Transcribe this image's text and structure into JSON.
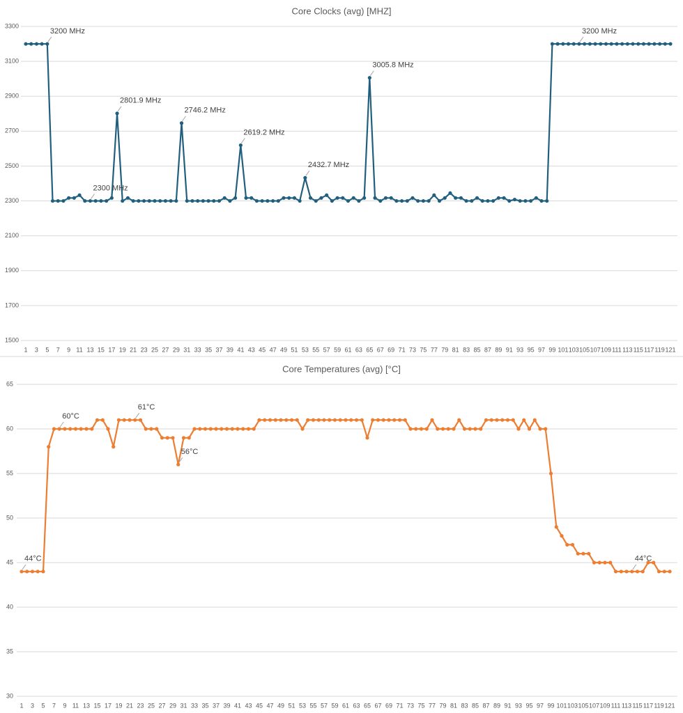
{
  "chart_data": [
    {
      "type": "line",
      "title": "Core Clocks (avg) [MHZ]",
      "color": "#215f7e",
      "ylim": [
        1500,
        3300
      ],
      "yticks": [
        1500,
        1700,
        1900,
        2100,
        2300,
        2500,
        2700,
        2900,
        3100,
        3300
      ],
      "grid": true,
      "categories": [
        1,
        null,
        3,
        null,
        5,
        null,
        7,
        null,
        9,
        null,
        11,
        null,
        13,
        null,
        15,
        null,
        17,
        null,
        19,
        null,
        21,
        null,
        23,
        null,
        25,
        null,
        27,
        null,
        29,
        null,
        31,
        null,
        33,
        null,
        35,
        null,
        37,
        null,
        39,
        null,
        41,
        null,
        43,
        null,
        45,
        null,
        47,
        null,
        49,
        null,
        51,
        null,
        53,
        null,
        55,
        null,
        57,
        null,
        59,
        null,
        61,
        null,
        63,
        null,
        65,
        null,
        67,
        null,
        69,
        null,
        71,
        null,
        73,
        null,
        75,
        null,
        77,
        null,
        79,
        null,
        81,
        null,
        83,
        null,
        85,
        null,
        87,
        null,
        89,
        null,
        91,
        null,
        93,
        null,
        95,
        null,
        97,
        null,
        99,
        null,
        101,
        null,
        103,
        null,
        105,
        null,
        107,
        null,
        109,
        null,
        111,
        null,
        113,
        null,
        115,
        null,
        117,
        null,
        119,
        null,
        121
      ],
      "values": [
        3200,
        3200,
        3200,
        3200,
        3200,
        2300,
        2300,
        2300,
        2317,
        2317,
        2333,
        2300,
        2300,
        2300,
        2300,
        2300,
        2317,
        2801.9,
        2300,
        2317,
        2300,
        2300,
        2300,
        2300,
        2300,
        2300,
        2300,
        2300,
        2300,
        2746.2,
        2300,
        2300,
        2300,
        2300,
        2300,
        2300,
        2300,
        2317,
        2300,
        2317,
        2619.2,
        2317,
        2317,
        2300,
        2300,
        2300,
        2300,
        2300,
        2317,
        2317,
        2317,
        2300,
        2432.7,
        2317,
        2300,
        2317,
        2333,
        2300,
        2317,
        2317,
        2300,
        2317,
        2300,
        2317,
        3005.8,
        2317,
        2300,
        2317,
        2317,
        2300,
        2300,
        2300,
        2317,
        2300,
        2300,
        2300,
        2333,
        2300,
        2317,
        2345,
        2317,
        2317,
        2300,
        2300,
        2317,
        2300,
        2300,
        2300,
        2317,
        2317,
        2300,
        2308,
        2300,
        2300,
        2300,
        2317,
        2300,
        2300,
        3200,
        3200,
        3200,
        3200,
        3200,
        3200,
        3200,
        3200,
        3200,
        3200,
        3200,
        3200,
        3200,
        3200,
        3200,
        3200,
        3200,
        3200,
        3200,
        3200,
        3200,
        3200,
        3200
      ],
      "value_labels": [
        null,
        null,
        null,
        null,
        "3200 MHz",
        null,
        null,
        null,
        null,
        null,
        null,
        null,
        "2300 MHz",
        null,
        null,
        null,
        null,
        "2801.9 MHz",
        null,
        null,
        null,
        null,
        null,
        null,
        null,
        null,
        null,
        null,
        null,
        "2746.2 MHz",
        null,
        null,
        null,
        null,
        null,
        null,
        null,
        null,
        null,
        null,
        "2619.2 MHz",
        null,
        null,
        null,
        null,
        null,
        null,
        null,
        null,
        null,
        null,
        null,
        "2432.7 MHz",
        null,
        null,
        null,
        null,
        null,
        null,
        null,
        null,
        null,
        null,
        null,
        "3005.8 MHz",
        null,
        null,
        null,
        null,
        null,
        null,
        null,
        null,
        null,
        null,
        null,
        null,
        null,
        null,
        null,
        null,
        null,
        null,
        null,
        null,
        null,
        null,
        null,
        null,
        null,
        null,
        null,
        null,
        null,
        null,
        null,
        null,
        null,
        null,
        null,
        null,
        null,
        null,
        "3200 MHz",
        null,
        null,
        null,
        null,
        null,
        null,
        null,
        null,
        null,
        null,
        null,
        null,
        null,
        null,
        null,
        null,
        null
      ]
    },
    {
      "type": "line",
      "title": "Core Temperatures (avg) [°C]",
      "color": "#ed7d31",
      "ylim": [
        30,
        65
      ],
      "yticks": [
        30,
        35,
        40,
        45,
        50,
        55,
        60,
        65
      ],
      "grid": true,
      "categories": [
        1,
        null,
        3,
        null,
        5,
        null,
        7,
        null,
        9,
        null,
        11,
        null,
        13,
        null,
        15,
        null,
        17,
        null,
        19,
        null,
        21,
        null,
        23,
        null,
        25,
        null,
        27,
        null,
        29,
        null,
        31,
        null,
        33,
        null,
        35,
        null,
        37,
        null,
        39,
        null,
        41,
        null,
        43,
        null,
        45,
        null,
        47,
        null,
        49,
        null,
        51,
        null,
        53,
        null,
        55,
        null,
        57,
        null,
        59,
        null,
        61,
        null,
        63,
        null,
        65,
        null,
        67,
        null,
        69,
        null,
        71,
        null,
        73,
        null,
        75,
        null,
        77,
        null,
        79,
        null,
        81,
        null,
        83,
        null,
        85,
        null,
        87,
        null,
        89,
        null,
        91,
        null,
        93,
        null,
        95,
        null,
        97,
        null,
        99,
        null,
        101,
        null,
        103,
        null,
        105,
        null,
        107,
        null,
        109,
        null,
        111,
        null,
        113,
        null,
        115,
        null,
        117,
        null,
        119,
        null,
        121
      ],
      "values": [
        44,
        44,
        44,
        44,
        44,
        58,
        60,
        60,
        60,
        60,
        60,
        60,
        60,
        60,
        61,
        61,
        60,
        58,
        61,
        61,
        61,
        61,
        61,
        60,
        60,
        60,
        59,
        59,
        59,
        56,
        59,
        59,
        60,
        60,
        60,
        60,
        60,
        60,
        60,
        60,
        60,
        60,
        60,
        60,
        61,
        61,
        61,
        61,
        61,
        61,
        61,
        61,
        60,
        61,
        61,
        61,
        61,
        61,
        61,
        61,
        61,
        61,
        61,
        61,
        59,
        61,
        61,
        61,
        61,
        61,
        61,
        61,
        60,
        60,
        60,
        60,
        61,
        60,
        60,
        60,
        60,
        61,
        60,
        60,
        60,
        60,
        61,
        61,
        61,
        61,
        61,
        61,
        60,
        61,
        60,
        61,
        60,
        60,
        55,
        49,
        48,
        47,
        47,
        46,
        46,
        46,
        45,
        45,
        45,
        45,
        44,
        44,
        44,
        44,
        44,
        44,
        45,
        45,
        44,
        44,
        44
      ],
      "value_labels": [
        "44°C",
        null,
        null,
        null,
        null,
        null,
        null,
        "60°C",
        null,
        null,
        null,
        null,
        null,
        null,
        null,
        null,
        null,
        null,
        null,
        null,
        null,
        "61°C",
        null,
        null,
        null,
        null,
        null,
        null,
        null,
        "56°C",
        null,
        null,
        null,
        null,
        null,
        null,
        null,
        null,
        null,
        null,
        null,
        null,
        null,
        null,
        null,
        null,
        null,
        null,
        null,
        null,
        null,
        null,
        null,
        null,
        null,
        null,
        null,
        null,
        null,
        null,
        null,
        null,
        null,
        null,
        null,
        null,
        null,
        null,
        null,
        null,
        null,
        null,
        null,
        null,
        null,
        null,
        null,
        null,
        null,
        null,
        null,
        null,
        null,
        null,
        null,
        null,
        null,
        null,
        null,
        null,
        null,
        null,
        null,
        null,
        null,
        null,
        null,
        null,
        null,
        null,
        null,
        null,
        null,
        null,
        null,
        null,
        null,
        null,
        null,
        null,
        null,
        null,
        null,
        "44°C",
        null,
        null,
        null,
        null,
        null,
        null,
        null
      ]
    }
  ]
}
